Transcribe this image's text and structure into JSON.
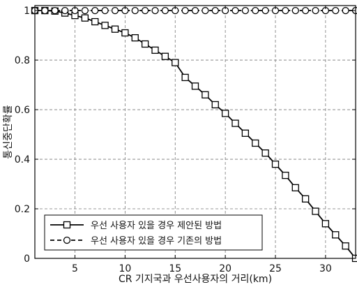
{
  "chart_data": {
    "type": "line",
    "xlabel": "CR 기지국과 우선사용자의 거리(km)",
    "ylabel": "통신중단확률",
    "xlim": [
      1,
      33
    ],
    "ylim": [
      0,
      1.02
    ],
    "x_ticks": [
      5,
      10,
      15,
      20,
      25,
      30
    ],
    "y_ticks": [
      0,
      0.2,
      0.4,
      0.6,
      0.8,
      1
    ],
    "y_tick_labels": [
      "0",
      "0.2",
      "0.4",
      "0.6",
      "0.8",
      "1"
    ],
    "grid": true,
    "legend_position": "bottom-left",
    "series": [
      {
        "name": "우선 사용자 있을 경우 제안된 방법",
        "style": "solid",
        "marker": "square",
        "color": "#000000",
        "x": [
          1,
          2,
          3,
          4,
          5,
          6,
          7,
          8,
          9,
          10,
          11,
          12,
          13,
          14,
          15,
          16,
          17,
          18,
          19,
          20,
          21,
          22,
          23,
          24,
          25,
          26,
          27,
          28,
          29,
          30,
          31,
          32,
          33
        ],
        "y": [
          1.0,
          1.0,
          0.998,
          0.99,
          0.98,
          0.97,
          0.955,
          0.94,
          0.925,
          0.91,
          0.89,
          0.865,
          0.84,
          0.815,
          0.79,
          0.73,
          0.695,
          0.66,
          0.62,
          0.585,
          0.545,
          0.505,
          0.465,
          0.425,
          0.38,
          0.335,
          0.285,
          0.24,
          0.19,
          0.14,
          0.095,
          0.05,
          0.0
        ]
      },
      {
        "name": "우선 사용자 있을 경우 기존의 방법",
        "style": "dashed",
        "marker": "circle",
        "color": "#000000",
        "x": [
          1,
          2,
          3,
          4,
          5,
          6,
          7,
          8,
          9,
          10,
          11,
          12,
          13,
          14,
          15,
          16,
          17,
          18,
          19,
          20,
          21,
          22,
          23,
          24,
          25,
          26,
          27,
          28,
          29,
          30,
          31,
          32,
          33
        ],
        "y": [
          1,
          1,
          1,
          1,
          1,
          1,
          1,
          1,
          1,
          1,
          1,
          1,
          1,
          1,
          1,
          1,
          1,
          1,
          1,
          1,
          1,
          1,
          1,
          1,
          1,
          1,
          1,
          1,
          1,
          1,
          1,
          1,
          1
        ]
      }
    ]
  }
}
